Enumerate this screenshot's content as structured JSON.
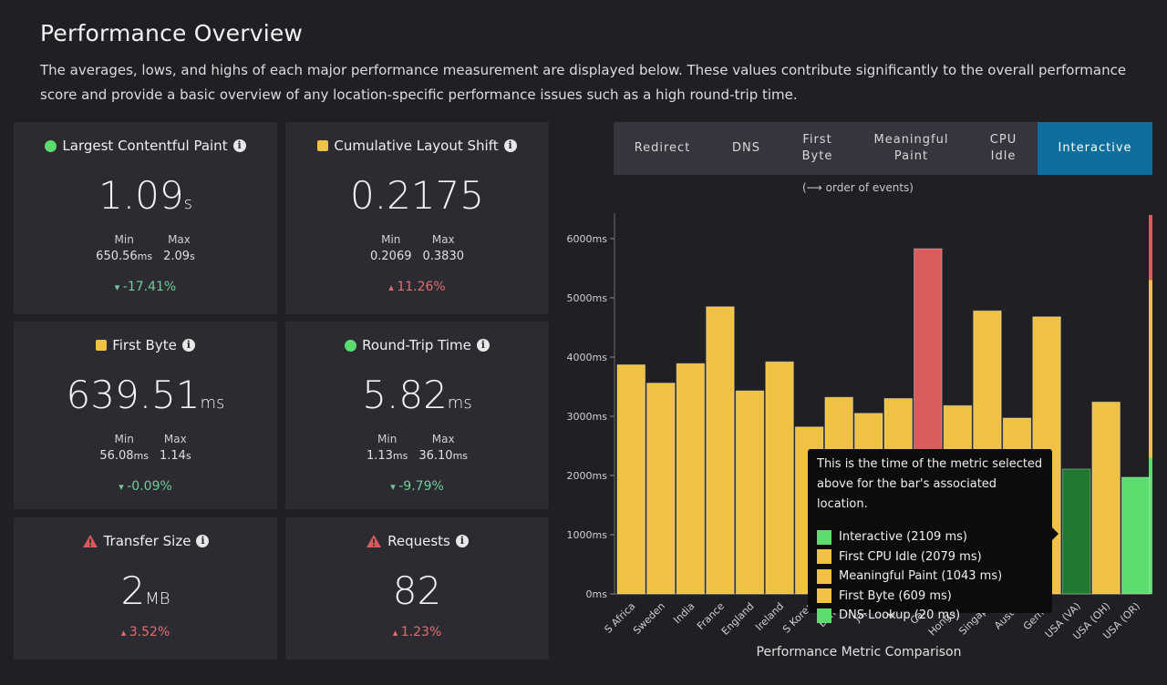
{
  "page": {
    "title": "Performance Overview",
    "description": "The averages, lows, and highs of each major performance measurement are displayed below. These values contribute significantly to the overall performance score and provide a basic overview of any location-specific performance issues such as a high round-trip time."
  },
  "cards": [
    {
      "id": "lcp",
      "title": "Largest Contentful Paint",
      "status": "good",
      "value": "1.09",
      "unit": "s",
      "min_label": "Min",
      "max_label": "Max",
      "min": "650.56",
      "min_unit": "ms",
      "max": "2.09",
      "max_unit": "s",
      "change": "-17.41%",
      "direction": "down"
    },
    {
      "id": "cls",
      "title": "Cumulative Layout Shift",
      "status": "average",
      "value": "0.2175",
      "unit": "",
      "min_label": "Min",
      "max_label": "Max",
      "min": "0.2069",
      "min_unit": "",
      "max": "0.3830",
      "max_unit": "",
      "change": "11.26%",
      "direction": "up"
    },
    {
      "id": "fb",
      "title": "First Byte",
      "status": "average",
      "value": "639.51",
      "unit": "ms",
      "min_label": "Min",
      "max_label": "Max",
      "min": "56.08",
      "min_unit": "ms",
      "max": "1.14",
      "max_unit": "s",
      "change": "-0.09%",
      "direction": "down"
    },
    {
      "id": "rtt",
      "title": "Round-Trip Time",
      "status": "good",
      "value": "5.82",
      "unit": "ms",
      "min_label": "Min",
      "max_label": "Max",
      "min": "1.13",
      "min_unit": "ms",
      "max": "36.10",
      "max_unit": "ms",
      "change": "-9.79%",
      "direction": "down"
    },
    {
      "id": "ts",
      "title": "Transfer Size",
      "status": "warning",
      "value": "2",
      "unit": "MB",
      "change": "3.52%",
      "direction": "up"
    },
    {
      "id": "req",
      "title": "Requests",
      "status": "warning",
      "value": "82",
      "unit": "",
      "change": "1.23%",
      "direction": "up"
    }
  ],
  "tabs": [
    {
      "label": "Redirect",
      "active": false
    },
    {
      "label": "DNS",
      "active": false
    },
    {
      "label": "First\nByte",
      "active": false
    },
    {
      "label": "Meaningful\nPaint",
      "active": false
    },
    {
      "label": "CPU\nIdle",
      "active": false
    },
    {
      "label": "Interactive",
      "active": true
    }
  ],
  "order_note": "(⟶ order of events)",
  "colors": {
    "good": "#5ddc6f",
    "average": "#efc244",
    "poor": "#d95c5c",
    "dark_good": "#1f7a30",
    "accent": "#0e6f9e"
  },
  "chart_data": {
    "type": "bar",
    "xlabel": "Performance Metric Comparison",
    "ylabel": "",
    "ylim": [
      0,
      6400
    ],
    "yticks": [
      0,
      1000,
      2000,
      3000,
      4000,
      5000,
      6000
    ],
    "ytick_labels": [
      "0ms",
      "1000ms",
      "2000ms",
      "3000ms",
      "4000ms",
      "5000ms",
      "6000ms"
    ],
    "categories": [
      "S Africa",
      "Sweden",
      "India",
      "France",
      "England",
      "Ireland",
      "S Korea",
      "Bahra",
      "Japa",
      "Bra",
      "Cana",
      "Hong Ko",
      "Singapo",
      "Austra",
      "Germa",
      "USA (VA)",
      "USA (OH)",
      "USA (OR)"
    ],
    "values": [
      3870,
      3560,
      3890,
      4850,
      3430,
      3920,
      2820,
      3320,
      3050,
      3300,
      5830,
      3180,
      4780,
      2970,
      4680,
      2109,
      3240,
      1970
    ],
    "bar_status": [
      "average",
      "average",
      "average",
      "average",
      "average",
      "average",
      "average",
      "average",
      "average",
      "average",
      "poor",
      "average",
      "average",
      "average",
      "average",
      "dark_good",
      "average",
      "good"
    ],
    "threshold_bands": [
      {
        "status": "poor",
        "from": 5300,
        "to": 6400
      },
      {
        "status": "average",
        "from": 2300,
        "to": 5300
      },
      {
        "status": "good",
        "from": 0,
        "to": 2300
      }
    ]
  },
  "tooltip": {
    "text": "This is the time of the metric selected above for the bar's associated location.",
    "items": [
      {
        "label": "Interactive (2109 ms)",
        "status": "good"
      },
      {
        "label": "First CPU Idle (2079 ms)",
        "status": "average"
      },
      {
        "label": "Meaningful Paint (1043 ms)",
        "status": "average"
      },
      {
        "label": "First Byte (609 ms)",
        "status": "average"
      },
      {
        "label": "DNS Lookup (20 ms)",
        "status": "good"
      }
    ]
  }
}
